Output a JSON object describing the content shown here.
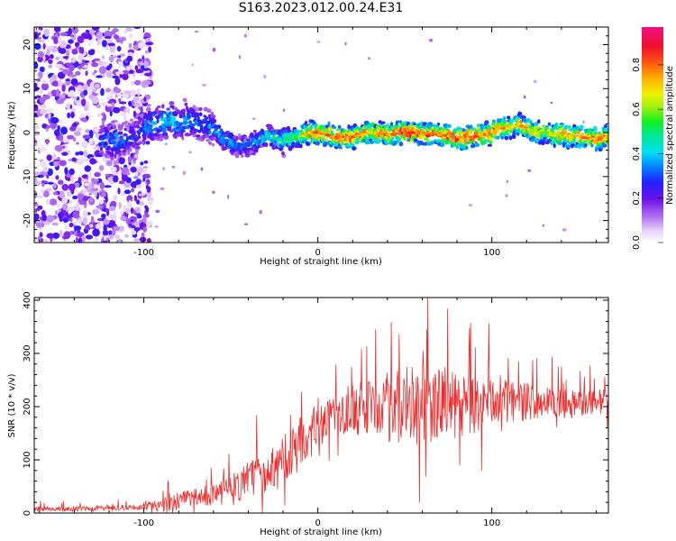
{
  "title": "S163.2023.012.00.24.E31",
  "colors": {
    "snr_line": "#ee2e2e",
    "frame": "#000000"
  },
  "chart_data": [
    {
      "type": "heatmap",
      "title": "S163.2023.012.00.24.E31",
      "xlabel": "Height of straight line (km)",
      "ylabel": "Frequency (Hz)",
      "xlim": [
        -163,
        167
      ],
      "ylim": [
        -25,
        24
      ],
      "xticks": [
        -100,
        0,
        100
      ],
      "yticks": [
        -20,
        -10,
        0,
        10,
        20
      ],
      "colorbar": {
        "label": "Normalized spectral amplitude",
        "range": [
          0,
          0.97
        ],
        "ticks": [
          0.0,
          0.2,
          0.4,
          0.6,
          0.8
        ],
        "colormap": "white-purple-blue-cyan-green-yellow-red-pink"
      },
      "description_points": {
        "noise_region_x": [
          -163,
          -100
        ],
        "signal_track": {
          "x": [
            -125,
            -115,
            -105,
            -100,
            -95,
            -90,
            -85,
            -80,
            -75,
            -70,
            -65,
            -60,
            -55,
            -50,
            -45,
            -40,
            -35,
            -30,
            -25,
            -20,
            -15,
            -10,
            -5,
            0,
            10,
            20,
            30,
            40,
            50,
            60,
            70,
            80,
            90,
            100,
            105,
            110,
            115,
            120,
            125,
            130,
            140,
            150,
            160,
            167
          ],
          "y": [
            -2,
            -2,
            -1,
            1,
            2,
            2,
            3,
            2,
            3,
            2,
            2,
            1,
            -1,
            -2,
            -3,
            -3,
            -2,
            -1,
            -1,
            -2,
            -1,
            -1,
            0,
            0,
            -1,
            -1,
            0,
            -0.5,
            0,
            0,
            -0.5,
            -1,
            -1,
            0,
            1,
            1,
            2,
            1,
            0,
            0,
            -0.5,
            -1,
            -1.5,
            -1
          ],
          "peak_amplitude": [
            0.3,
            0.4,
            0.3,
            0.35,
            0.4,
            0.4,
            0.45,
            0.4,
            0.4,
            0.35,
            0.35,
            0.4,
            0.45,
            0.4,
            0.35,
            0.35,
            0.4,
            0.45,
            0.5,
            0.6,
            0.6,
            0.7,
            0.8,
            0.9,
            0.9,
            0.9,
            0.8,
            0.9,
            0.95,
            0.9,
            0.85,
            0.9,
            0.9,
            0.85,
            0.9,
            0.8,
            0.85,
            0.8,
            0.75,
            0.7,
            0.8,
            0.85,
            0.9,
            0.85
          ]
        }
      }
    },
    {
      "type": "line",
      "xlabel": "Height of straight line (km)",
      "ylabel": "SNR (10 * v/v)",
      "xlim": [
        -163,
        167
      ],
      "ylim": [
        0,
        405
      ],
      "xticks": [
        -100,
        0,
        100
      ],
      "yticks": [
        0,
        100,
        200,
        300,
        400
      ],
      "series": [
        {
          "envelope": {
            "x": [
              -163,
              -140,
              -120,
              -100,
              -90,
              -85,
              -80,
              -70,
              -60,
              -50,
              -40,
              -30,
              -20,
              -10,
              0,
              5,
              10,
              20,
              30,
              40,
              50,
              60,
              70,
              80,
              90,
              100,
              110,
              120,
              130,
              140,
              150,
              160,
              167
            ],
            "base": [
              8,
              8,
              9,
              12,
              15,
              20,
              22,
              28,
              35,
              45,
              60,
              80,
              100,
              130,
              160,
              175,
              185,
              195,
              200,
              200,
              200,
              200,
              205,
              200,
              200,
              210,
              210,
              210,
              210,
              205,
              205,
              210,
              210
            ],
            "spread": [
              10,
              10,
              10,
              12,
              25,
              50,
              40,
              40,
              50,
              60,
              80,
              90,
              100,
              110,
              90,
              80,
              90,
              110,
              130,
              150,
              170,
              160,
              150,
              140,
              120,
              100,
              90,
              80,
              70,
              60,
              55,
              55,
              55
            ]
          }
        }
      ]
    }
  ]
}
